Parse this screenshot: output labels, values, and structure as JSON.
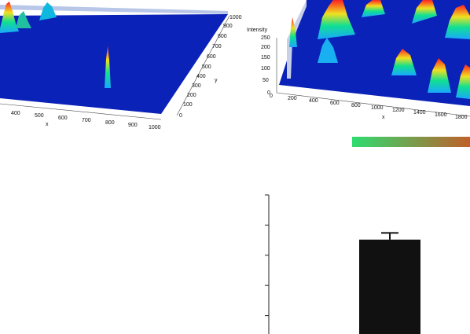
{
  "figure": {
    "colorbar_colors": [
      "#2edc70",
      "#c0602a"
    ],
    "surface_colors": [
      "#0a1aa8",
      "#1aa8ff",
      "#10e090",
      "#f0e020",
      "#ff2020"
    ]
  },
  "chart_data": [
    {
      "type": "surface",
      "xlabel": "x",
      "ylabel": "y",
      "x_ticks": [
        "400",
        "500",
        "600",
        "700",
        "800",
        "900",
        "1000"
      ],
      "y_ticks": [
        "0",
        "100",
        "200",
        "300",
        "400",
        "500",
        "600",
        "700",
        "800",
        "900",
        "1000"
      ]
    },
    {
      "type": "surface",
      "xlabel": "x",
      "zlabel": "Intensity",
      "x_ticks": [
        "0",
        "200",
        "400",
        "600",
        "800",
        "1000",
        "1200",
        "1400",
        "1600",
        "1800"
      ],
      "z_ticks": [
        "0",
        "50",
        "100",
        "150",
        "200",
        "250"
      ]
    },
    {
      "type": "bar",
      "values": [
        95
      ],
      "error": [
        6
      ],
      "ylim": [
        0,
        135
      ],
      "bar_color": "#111111",
      "grid": false
    }
  ]
}
